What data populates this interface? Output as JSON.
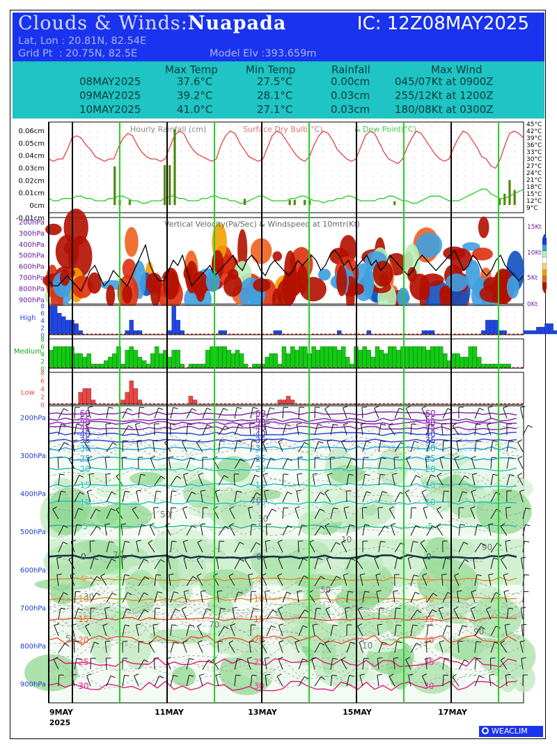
{
  "header": {
    "title_prefix": "Clouds & Winds:",
    "station": "Nuapada",
    "ic": "IC: 12Z08MAY2025",
    "latlon": "Lat, Lon : 20.81N, 82.54E",
    "gridpt": "Grid Pt  : 20.75N, 82.5E",
    "elev": "Model Elv :393.659m"
  },
  "stats": {
    "columns": [
      "Max Temp",
      "Min Temp",
      "Rainfall",
      "Max Wind"
    ],
    "rows": [
      {
        "date": "08MAY2025",
        "max": "37.6°C",
        "min": "27.5°C",
        "rain": "0.00cm",
        "wind": "045/07Kt at 0900Z"
      },
      {
        "date": "09MAY2025",
        "max": "39.2°C",
        "min": "28.1°C",
        "rain": "0.03cm",
        "wind": "255/12Kt at 1200Z"
      },
      {
        "date": "10MAY2025",
        "max": "41.0°C",
        "min": "27.1°C",
        "rain": "0.03cm",
        "wind": "180/08Kt at 0300Z"
      }
    ]
  },
  "chart_data": [
    {
      "type": "line",
      "title": "Hourly Rainfall (cm), Surface Dry Bulb(°C) & Dew Point(°C)",
      "legend": [
        "Hourly Rainfall (cm)",
        "Surface Dry Bulb(°C)",
        "& Dew Point(°C)"
      ],
      "y_left_ticks": [
        "0.06cm",
        "0.05cm",
        "0.04cm",
        "0.03cm",
        "0.02cm",
        "0.01cm",
        "0cm",
        "-0.01cm"
      ],
      "y_right_ticks": [
        "45°C",
        "42°C",
        "39°C",
        "36°C",
        "33°C",
        "30°C",
        "27°C",
        "24°C",
        "21°C",
        "18°C",
        "15°C",
        "12°C",
        "9°C"
      ],
      "ylim_left": [
        -0.01,
        0.065
      ],
      "ylim_right": [
        9,
        45
      ],
      "colors": {
        "rain": "#3c8c1e",
        "drybulb": "#e34040",
        "dewpoint": "#22cc22"
      },
      "drybulb": [
        30,
        29,
        30,
        30,
        34,
        39,
        40,
        39,
        36,
        34,
        31,
        30,
        29,
        30,
        30,
        35,
        39,
        41,
        40,
        36,
        33,
        31,
        30,
        30,
        29,
        30,
        35,
        40,
        42,
        41,
        37,
        34,
        32,
        31,
        30,
        29,
        30,
        36,
        40,
        42,
        41,
        37,
        34,
        31,
        30,
        29,
        30,
        35,
        40,
        42,
        41,
        38,
        35,
        32,
        30,
        29,
        31,
        36,
        40,
        42,
        41,
        38,
        34,
        32,
        30,
        29,
        30,
        35,
        40,
        42,
        41,
        37,
        33,
        30,
        29,
        28,
        30,
        35,
        39,
        42,
        41,
        38,
        35,
        32,
        30,
        29,
        30,
        35,
        39,
        42,
        41,
        38,
        35,
        31,
        30,
        27,
        26,
        30,
        36,
        41,
        42,
        41,
        39
      ],
      "dewpoint": [
        13,
        12,
        12,
        13,
        13,
        13,
        14,
        14,
        13,
        13,
        12,
        12,
        12,
        13,
        13,
        14,
        14,
        13,
        12,
        12,
        11,
        11,
        12,
        12,
        12,
        13,
        14,
        14,
        13,
        13,
        12,
        12,
        12,
        13,
        13,
        14,
        14,
        13,
        13,
        12,
        12,
        11,
        11,
        12,
        13,
        14,
        14,
        13,
        12,
        12,
        12,
        12,
        13,
        13,
        14,
        14,
        13,
        12,
        12,
        11,
        12,
        12,
        13,
        13,
        14,
        14,
        13,
        12,
        12,
        12,
        12,
        13,
        13,
        14,
        14,
        13,
        12,
        12,
        11,
        11,
        12,
        13,
        14,
        14,
        14,
        13,
        12,
        12,
        12,
        13,
        14,
        15,
        16,
        17,
        17,
        15,
        14,
        13,
        13,
        14,
        15,
        16,
        17
      ],
      "rain": [
        {
          "i": 13,
          "v": 0.031
        },
        {
          "i": 14,
          "v": 0.004
        },
        {
          "i": 16,
          "v": 0.004
        },
        {
          "i": 23,
          "v": 0.032
        },
        {
          "i": 24,
          "v": 0.032
        },
        {
          "i": 25,
          "v": 0.061
        },
        {
          "i": 39,
          "v": 0.005
        },
        {
          "i": 48,
          "v": 0.004
        },
        {
          "i": 49,
          "v": 0.004
        },
        {
          "i": 51,
          "v": 0.004
        },
        {
          "i": 52,
          "v": 0.004
        },
        {
          "i": 69,
          "v": 0.003
        },
        {
          "i": 90,
          "v": 0.005
        },
        {
          "i": 91,
          "v": 0.009
        },
        {
          "i": 92,
          "v": 0.02
        },
        {
          "i": 93,
          "v": 0.012
        }
      ]
    },
    {
      "type": "heatmap",
      "title": "Vertical Velocity(Pa/Sec) & Windspeed at 10mtr(Kt)",
      "y_ticks": [
        "200hPa",
        "300hPa",
        "400hPa",
        "500hPa",
        "600hPa",
        "700hPa",
        "800hPa",
        "900hPa"
      ],
      "y_right_ticks": [
        "15Kt",
        "10Kt",
        "5Kt",
        "0Kt"
      ],
      "ylim_right": [
        0,
        15
      ],
      "windspeed": [
        4,
        3,
        3,
        4,
        5,
        4,
        3,
        2,
        4,
        6,
        7,
        5,
        3,
        4,
        6,
        5,
        4,
        3,
        5,
        7,
        9,
        11,
        7,
        5,
        4,
        4,
        6,
        8,
        7,
        9,
        6,
        3,
        4,
        5,
        6,
        7,
        5,
        6,
        7,
        8,
        9,
        7,
        6,
        8,
        9,
        8,
        6,
        5,
        7,
        8,
        7,
        6,
        5,
        6,
        8,
        7,
        8,
        9,
        8,
        6,
        7,
        9,
        10,
        9,
        7,
        8,
        6,
        7,
        8,
        9,
        7,
        8,
        6,
        7,
        9,
        8,
        7,
        6,
        5,
        6,
        8,
        9,
        8,
        7,
        6,
        7,
        8,
        9,
        10,
        8,
        6,
        7,
        9,
        8,
        6,
        5,
        6,
        8,
        9,
        7,
        6,
        5,
        4,
        5
      ]
    },
    {
      "type": "bar",
      "title": "Cloud cover",
      "panels": [
        {
          "name": "High",
          "color": "#1e46e6",
          "ytick_labels": [
            "8",
            "6",
            "4",
            "2",
            "0"
          ],
          "ylim": [
            0,
            8
          ],
          "values": {
            "0": 8,
            "1": 8,
            "2": 6,
            "3": 5,
            "4": 4,
            "5": 4,
            "6": 3,
            "7": 1,
            "18": 1,
            "19": 4,
            "20": 1,
            "21": 1,
            "28": 1,
            "29": 8,
            "30": 4,
            "31": 1,
            "40": 1,
            "41": 1,
            "53": 1,
            "54": 1,
            "68": 1,
            "75": 1,
            "88": 1,
            "89": 1,
            "90": 1,
            "102": 1,
            "103": 4,
            "104": 4,
            "105": 4,
            "106": 1,
            "107": 1,
            "112": 1,
            "113": 1,
            "114": 1,
            "115": 2,
            "116": 2,
            "117": 3,
            "118": 3,
            "119": 1,
            "120": 1,
            "122": 1,
            "123": 3,
            "124": 4,
            "125": 2,
            "126": 1,
            "128": 1,
            "130": 1,
            "131": 2,
            "132": 2,
            "133": 5,
            "134": 4,
            "135": 1,
            "136": 1
          }
        },
        {
          "name": "Medium",
          "color": "#11cc11",
          "ytick_labels": [
            "8",
            "6",
            "4",
            "2",
            "0"
          ],
          "ylim": [
            0,
            8
          ],
          "values": {
            "0": 5,
            "1": 6,
            "2": 6,
            "3": 6,
            "4": 6,
            "5": 6,
            "6": 4,
            "7": 4,
            "8": 3,
            "9": 4,
            "10": 1,
            "11": 1,
            "12": 1,
            "13": 2,
            "14": 3,
            "15": 4,
            "16": 6,
            "17": 1,
            "18": 5,
            "19": 6,
            "20": 5,
            "21": 3,
            "22": 2,
            "23": 1,
            "24": 4,
            "25": 6,
            "26": 4,
            "27": 5,
            "28": 3,
            "29": 5,
            "30": 5,
            "31": 1,
            "33": 1,
            "34": 1,
            "35": 1,
            "36": 1,
            "37": 5,
            "38": 6,
            "39": 6,
            "40": 6,
            "41": 6,
            "42": 5,
            "43": 4,
            "44": 5,
            "45": 4,
            "46": 1,
            "48": 1,
            "49": 1,
            "50": 1,
            "51": 3,
            "52": 4,
            "53": 4,
            "54": 1,
            "55": 6,
            "56": 4,
            "57": 6,
            "58": 5,
            "59": 6,
            "60": 6,
            "61": 4,
            "62": 6,
            "63": 5,
            "64": 6,
            "65": 6,
            "66": 6,
            "67": 6,
            "68": 5,
            "69": 6,
            "70": 3,
            "71": 1,
            "72": 6,
            "73": 5,
            "74": 6,
            "75": 5,
            "76": 3,
            "77": 6,
            "78": 5,
            "79": 4,
            "80": 6,
            "81": 6,
            "82": 5,
            "83": 6,
            "84": 6,
            "85": 6,
            "86": 6,
            "87": 6,
            "88": 6,
            "89": 5,
            "90": 6,
            "91": 6,
            "92": 6,
            "93": 4,
            "94": 2,
            "95": 4,
            "96": 4,
            "97": 3,
            "98": 3,
            "99": 6,
            "100": 6,
            "101": 3,
            "102": 1,
            "103": 1,
            "104": 1,
            "105": 1,
            "106": 1,
            "107": 1,
            "108": 1
          }
        },
        {
          "name": "Low",
          "color": "#ee4444",
          "ytick_labels": [
            "8",
            "6",
            "4",
            "2",
            "0"
          ],
          "ylim": [
            0,
            8
          ],
          "values": {
            "7": 3,
            "8": 4,
            "9": 4,
            "10": 1,
            "17": 1,
            "18": 3,
            "19": 6,
            "20": 4,
            "21": 1,
            "33": 2,
            "34": 1,
            "54": 1,
            "55": 1,
            "56": 2,
            "57": 1
          }
        }
      ]
    },
    {
      "type": "heatmap",
      "title": "Relative humidity, temperature (°C) and winds",
      "y_ticks": [
        "200hPa",
        "300hPa",
        "400hPa",
        "500hPa",
        "600hPa",
        "700hPa",
        "800hPa",
        "900hPa"
      ],
      "x_ticks": [
        "9MAY 2025",
        "11MAY",
        "13MAY",
        "15MAY",
        "17MAY"
      ],
      "isotherm_labels": [
        "-60",
        "-55",
        "-50",
        "-45",
        "-40",
        "-35",
        "-30",
        "-25",
        "-20",
        "-15",
        "-10",
        "-5",
        "0",
        "5",
        "10",
        "15",
        "20",
        "25",
        "30"
      ],
      "rh_labels": [
        "70",
        "50",
        "30",
        "10",
        "90"
      ],
      "isotherm_levels_hpa": {
        "-60": 190,
        "-55": 207,
        "-50": 215,
        "-45": 228,
        "-40": 244,
        "-35": 261,
        "-30": 282,
        "-25": 309,
        "-20": 337,
        "-15": 379,
        "-10": 424,
        "-5": 487,
        "0": 566,
        "5": 625,
        "10": 677,
        "15": 730,
        "20": 785,
        "25": 843,
        "30": 906
      }
    }
  ],
  "footer": {
    "logo": "WEACLIM"
  }
}
